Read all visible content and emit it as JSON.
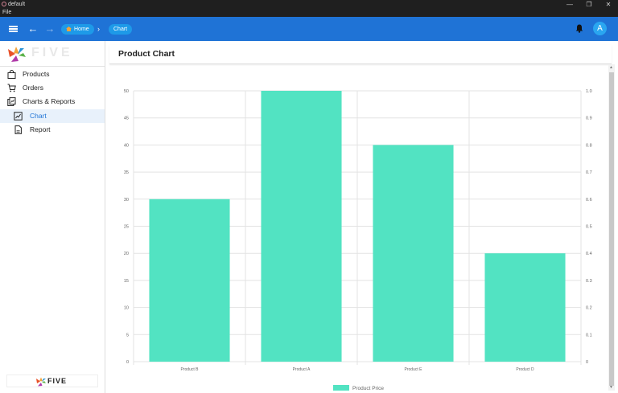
{
  "window": {
    "title": "default",
    "menu_file": "File",
    "min_glyph": "—",
    "max_glyph": "❐",
    "close_glyph": "✕"
  },
  "appbar": {
    "crumbs": [
      {
        "label": "Home"
      },
      {
        "label": "Chart"
      }
    ],
    "crumb_separator": "›",
    "back_glyph": "←",
    "forward_glyph": "→",
    "avatar_letter": "A",
    "color": "#1f73d6"
  },
  "sidebar": {
    "logo_text": "FIVE",
    "bottom_logo_text": "FIVE",
    "items": [
      {
        "label": "Products",
        "icon": "shopping-bag-icon"
      },
      {
        "label": "Orders",
        "icon": "cart-icon"
      },
      {
        "label": "Charts & Reports",
        "icon": "charts-reports-icon"
      },
      {
        "label": "Chart",
        "icon": "chart-icon",
        "active": true
      },
      {
        "label": "Report",
        "icon": "report-icon"
      }
    ]
  },
  "page": {
    "title": "Product Chart"
  },
  "chart_data": {
    "type": "bar",
    "categories": [
      "Product B",
      "Product A",
      "Product E",
      "Product D"
    ],
    "series": [
      {
        "name": "Product Price",
        "values": [
          30,
          50,
          40,
          20
        ],
        "color": "#52e3c2"
      }
    ],
    "ylim": [
      0,
      50
    ],
    "yticks": [
      "0",
      "5",
      "10",
      "15",
      "20",
      "25",
      "30",
      "35",
      "40",
      "45",
      "50"
    ],
    "y2lim": [
      0,
      1
    ],
    "y2ticks": [
      "0",
      "0.1",
      "0.2",
      "0.3",
      "0.4",
      "0.5",
      "0.6",
      "0.7",
      "0.8",
      "0.9",
      "1.0"
    ],
    "grid": true,
    "legend": "bottom"
  }
}
